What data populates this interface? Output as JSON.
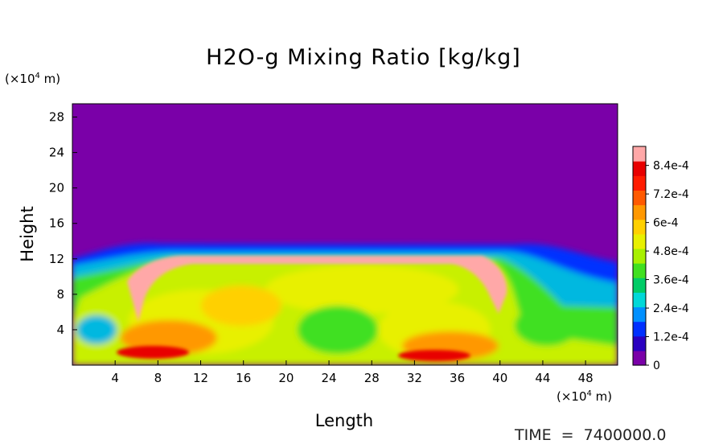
{
  "chart_data": {
    "type": "heatmap",
    "title": "H2O-g Mixing Ratio [kg/kg]",
    "xlabel": "Length",
    "ylabel": "Height",
    "x_unit": "(×10⁴ m)",
    "y_unit": "(×10⁴ m)",
    "xlim": [
      0,
      51
    ],
    "ylim": [
      0,
      29.5
    ],
    "xticks": [
      4,
      8,
      12,
      16,
      20,
      24,
      28,
      32,
      36,
      40,
      44,
      48
    ],
    "yticks": [
      4,
      8,
      12,
      16,
      20,
      24,
      28
    ],
    "colorbar": {
      "range": [
        0,
        0.00092
      ],
      "tick_values": [
        0,
        0.00012,
        0.00024,
        0.00036,
        0.00048,
        0.0006,
        0.00072,
        0.00084
      ],
      "tick_labels": [
        "0",
        "1.2e-4",
        "2.4e-4",
        "3.6e-4",
        "4.8e-4",
        "6e-4",
        "7.2e-4",
        "8.4e-4"
      ],
      "colors": [
        "#7a00a8",
        "#2a00c0",
        "#0030ff",
        "#0090ff",
        "#00d8d8",
        "#00cc66",
        "#40e020",
        "#a8f000",
        "#e8f000",
        "#ffd000",
        "#ff9800",
        "#ff5a00",
        "#ff1c00",
        "#e80000",
        "#ffa8a8"
      ]
    },
    "field_description_values": {
      "upper_layer_value": 0,
      "cloud_top_height": 13.5,
      "max_value": 0.00092
    }
  },
  "footer": {
    "time_text": "TIME  =  7400000.0"
  }
}
